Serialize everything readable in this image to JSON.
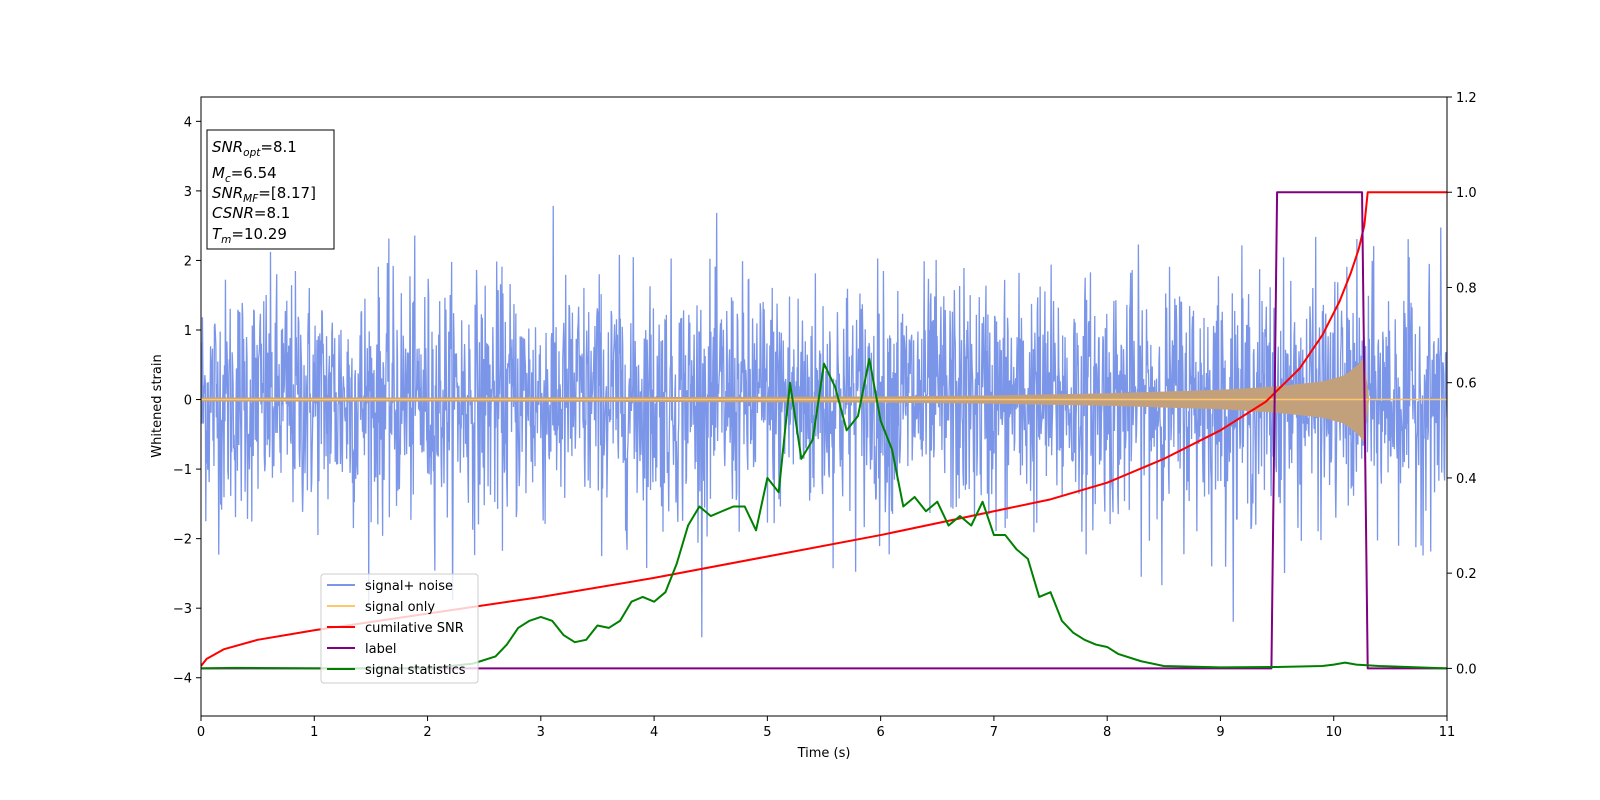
{
  "chart_data": {
    "type": "line",
    "xlabel": "Time (s)",
    "ylabel": "Whitened strain",
    "xlim": [
      0,
      11
    ],
    "ylim_left": [
      -4.55,
      4.35
    ],
    "ylim_right": [
      -0.1,
      1.2
    ],
    "x_ticks": [
      "0",
      "1",
      "2",
      "3",
      "4",
      "5",
      "6",
      "7",
      "8",
      "9",
      "10",
      "11"
    ],
    "y_ticks_left": [
      "−4",
      "−3",
      "−2",
      "−1",
      "0",
      "1",
      "2",
      "3",
      "4"
    ],
    "y_ticks_right": [
      "0.0",
      "0.2",
      "0.4",
      "0.6",
      "0.8",
      "1.0",
      "1.2"
    ],
    "legend_position": "lower-left",
    "grid": false,
    "annotation": {
      "snr_opt": {
        "base": "SNR",
        "sub": "opt",
        "value": "=8.1"
      },
      "mc": {
        "base": "M",
        "sub": "c",
        "value": "=6.54"
      },
      "snr_mf": {
        "base": "SNR",
        "sub": "MF",
        "value": "=[8.17]"
      },
      "csnr": {
        "base": "CSNR",
        "sub": "",
        "value": "=8.1"
      },
      "tm": {
        "base": "T",
        "sub": "m",
        "value": "=10.29"
      }
    },
    "series": [
      {
        "name": "signal+ noise",
        "axis": "left",
        "color": "#7b96e8",
        "description_values": {
          "noise_sigma": 0.85,
          "x_range": [
            0,
            11
          ],
          "merger_time": 10.29
        }
      },
      {
        "name": "signal only",
        "axis": "left",
        "color": "#ffc76b",
        "fill_color": "#c3a07c",
        "envelope": {
          "x": [
            0,
            2,
            4,
            6,
            7,
            8,
            9,
            9.5,
            9.9,
            10.1,
            10.25,
            10.29,
            10.3,
            11
          ],
          "amp": [
            0.03,
            0.03,
            0.035,
            0.045,
            0.06,
            0.09,
            0.14,
            0.19,
            0.26,
            0.35,
            0.55,
            0.7,
            0.0,
            0.0
          ]
        }
      },
      {
        "name": "cumilative SNR",
        "axis": "right",
        "color": "#ff0000",
        "x": [
          0,
          0.05,
          0.2,
          0.5,
          1,
          2,
          3,
          4,
          5,
          6,
          7,
          7.5,
          8,
          8.5,
          9,
          9.4,
          9.7,
          9.9,
          10.05,
          10.15,
          10.22,
          10.27,
          10.3,
          11
        ],
        "values": [
          0.005,
          0.02,
          0.04,
          0.06,
          0.08,
          0.115,
          0.15,
          0.19,
          0.235,
          0.28,
          0.33,
          0.355,
          0.39,
          0.44,
          0.5,
          0.56,
          0.63,
          0.7,
          0.77,
          0.83,
          0.88,
          0.93,
          1.0,
          1.0
        ]
      },
      {
        "name": "label",
        "axis": "right",
        "color": "#800080",
        "x": [
          0,
          9.45,
          9.5,
          10.25,
          10.3,
          11
        ],
        "values": [
          0,
          0,
          1,
          1,
          0,
          0
        ]
      },
      {
        "name": "signal statistics",
        "axis": "right",
        "color": "#008000",
        "x": [
          0,
          0.3,
          1,
          2,
          2.4,
          2.6,
          2.7,
          2.8,
          2.9,
          3.0,
          3.1,
          3.2,
          3.3,
          3.4,
          3.5,
          3.6,
          3.7,
          3.8,
          3.9,
          4.0,
          4.1,
          4.2,
          4.3,
          4.4,
          4.5,
          4.6,
          4.7,
          4.8,
          4.9,
          5.0,
          5.1,
          5.2,
          5.3,
          5.4,
          5.5,
          5.6,
          5.7,
          5.8,
          5.9,
          6.0,
          6.1,
          6.2,
          6.3,
          6.4,
          6.5,
          6.6,
          6.7,
          6.8,
          6.9,
          7.0,
          7.1,
          7.2,
          7.3,
          7.4,
          7.5,
          7.6,
          7.7,
          7.8,
          7.9,
          8.0,
          8.1,
          8.3,
          8.5,
          9.0,
          9.5,
          9.9,
          10.0,
          10.1,
          10.2,
          10.4,
          11
        ],
        "values": [
          0,
          0.001,
          0.0,
          0.0,
          0.01,
          0.025,
          0.05,
          0.085,
          0.1,
          0.108,
          0.1,
          0.07,
          0.055,
          0.06,
          0.09,
          0.085,
          0.1,
          0.14,
          0.15,
          0.14,
          0.16,
          0.22,
          0.3,
          0.34,
          0.32,
          0.33,
          0.34,
          0.34,
          0.29,
          0.4,
          0.37,
          0.6,
          0.44,
          0.48,
          0.64,
          0.59,
          0.5,
          0.53,
          0.65,
          0.52,
          0.46,
          0.34,
          0.36,
          0.33,
          0.35,
          0.3,
          0.32,
          0.3,
          0.35,
          0.28,
          0.28,
          0.25,
          0.23,
          0.15,
          0.16,
          0.1,
          0.075,
          0.06,
          0.05,
          0.045,
          0.03,
          0.015,
          0.005,
          0.002,
          0.003,
          0.005,
          0.008,
          0.012,
          0.008,
          0.005,
          0.0
        ]
      }
    ]
  }
}
